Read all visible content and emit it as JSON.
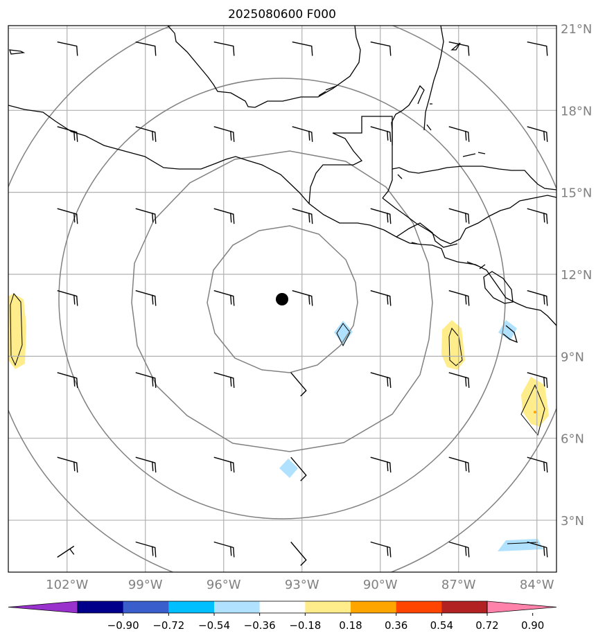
{
  "title": "2025080600 F000",
  "map": {
    "lon_range": [
      -104.25,
      -83.25
    ],
    "lat_range": [
      1.1,
      21.1
    ],
    "lon_ticks": [
      -102,
      -99,
      -96,
      -93,
      -90,
      -87,
      -84
    ],
    "lat_ticks": [
      3,
      6,
      9,
      12,
      15,
      18,
      21
    ],
    "lon_tick_labels": [
      "102°W",
      "99°W",
      "96°W",
      "93°W",
      "90°W",
      "87°W",
      "84°W"
    ],
    "lat_tick_labels": [
      "3°N",
      "6°N",
      "9°N",
      "12°N",
      "15°N",
      "18°N",
      "21°N"
    ],
    "grid": true,
    "center": {
      "lon": -93.0,
      "lat": 11.1
    },
    "range_ring_count": 4
  },
  "colorbar": {
    "tick_labels": [
      "−0.90",
      "−0.72",
      "−0.54",
      "−0.36",
      "−0.18",
      "0.18",
      "0.36",
      "0.54",
      "0.72",
      "0.90"
    ],
    "colors": [
      "#9932cc",
      "#00008b",
      "#3a5fcd",
      "#00bfff",
      "#b0e2ff",
      "#ffffff",
      "#ffec8b",
      "#ffa500",
      "#ff4500",
      "#b22222",
      "#ff82ab"
    ]
  },
  "shaded_features": [
    {
      "name": "positive-blob-west",
      "level": "0.18-0.36",
      "color": "#ffec8b"
    },
    {
      "name": "positive-blob-87w",
      "level": "0.18-0.36",
      "color": "#ffec8b"
    },
    {
      "name": "positive-blob-84w",
      "level": "0.18-0.36",
      "color": "#ffec8b"
    },
    {
      "name": "negative-blob-91w",
      "level": "-0.36--0.18",
      "color": "#b0e2ff"
    },
    {
      "name": "negative-blob-93w",
      "level": "-0.36--0.18",
      "color": "#b0e2ff"
    },
    {
      "name": "negative-blob-85w",
      "level": "-0.36--0.18",
      "color": "#b0e2ff"
    },
    {
      "name": "negative-blob-se",
      "level": "-0.36--0.18",
      "color": "#b0e2ff"
    }
  ]
}
